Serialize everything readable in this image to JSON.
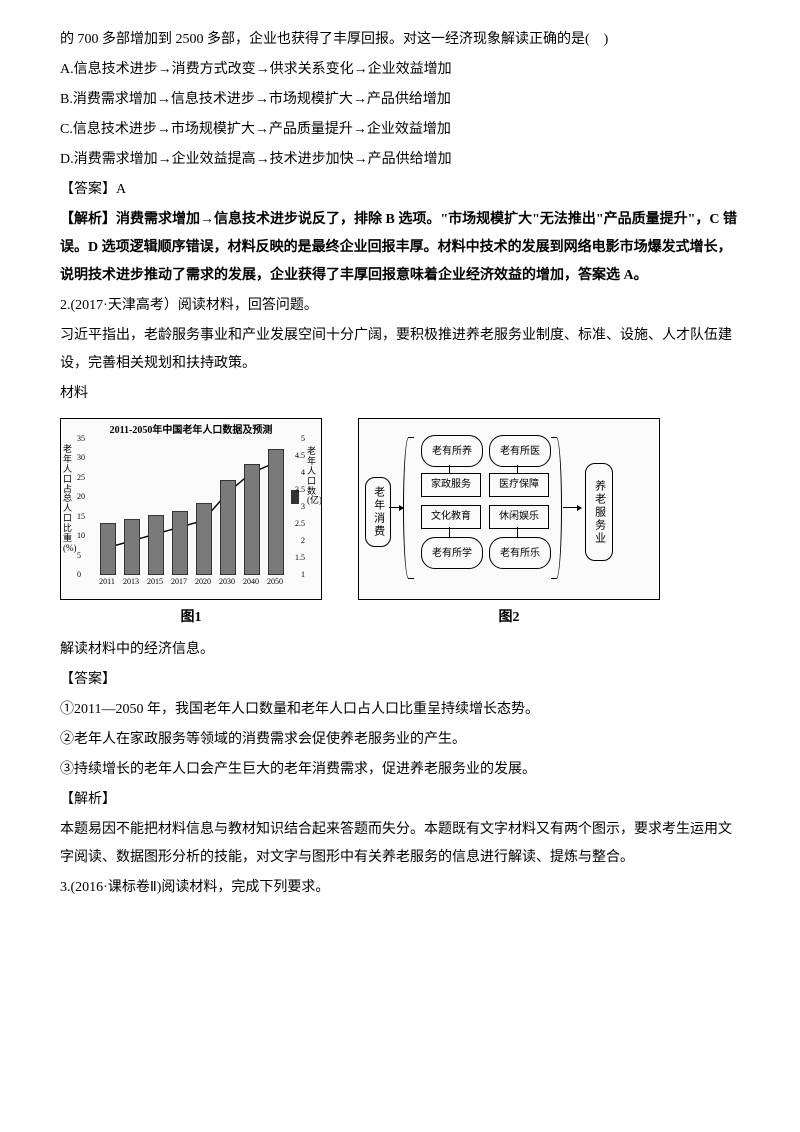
{
  "q1": {
    "stem_cont": "的 700 多部增加到 2500 多部，企业也获得了丰厚回报。对这一经济现象解读正确的是(　)",
    "opts": {
      "A": "A.信息技术进步→消费方式改变→供求关系变化→企业效益增加",
      "B": "B.消费需求增加→信息技术进步→市场规模扩大→产品供给增加",
      "C": "C.信息技术进步→市场规模扩大→产品质量提升→企业效益增加",
      "D": "D.消费需求增加→企业效益提高→技术进步加快→产品供给增加"
    },
    "answer_label": "【答案】A",
    "analysis_label": "【解析】",
    "analysis": "消费需求增加→信息技术进步说反了，排除 B 选项。\"市场规模扩大\"无法推出\"产品质量提升\"，C 错误。D 选项逻辑顺序错误，材料反映的是最终企业回报丰厚。材料中技术的发展到网络电影市场爆发式增长，说明技术进步推动了需求的发展，企业获得了丰厚回报意味着企业经济效益的增加，答案选 A。"
  },
  "q2": {
    "source": "2.(2017·天津高考）阅读材料，回答问题。",
    "intro": "习近平指出，老龄服务事业和产业发展空间十分广阔，要积极推进养老服务业制度、标准、设施、人才队伍建设，完善相关规划和扶持政策。",
    "material_label": "材料",
    "fig1": {
      "title": "2011-2050年中国老年人口数据及预测",
      "yleft_label": "老年人口占总人口比重(%)",
      "yright_label": "老年人口数(亿)",
      "yleft_ticks": [
        0,
        5,
        10,
        15,
        20,
        25,
        30,
        35
      ],
      "yright_ticks": [
        1,
        1.5,
        2,
        2.5,
        3,
        3.5,
        4,
        4.5,
        5
      ],
      "x_labels": [
        "2011",
        "2013",
        "2015",
        "2017",
        "2020",
        "2030",
        "2040",
        "2050"
      ],
      "bar_values_pct": [
        13,
        14,
        15,
        16,
        18,
        24,
        28,
        32
      ],
      "line_values": [
        1.8,
        2.0,
        2.2,
        2.4,
        2.6,
        3.4,
        4.0,
        4.3
      ],
      "yleft_max": 35,
      "yright_min": 1,
      "yright_max": 5,
      "caption": "图1",
      "legend_bar": "■"
    },
    "fig2": {
      "left_box": "老年消费",
      "grid": {
        "r1c1": "老有所养",
        "r1c2": "老有所医",
        "r2c1": "家政服务",
        "r2c2": "医疗保障",
        "r3c1": "文化教育",
        "r3c2": "休闲娱乐",
        "r4c1": "老有所学",
        "r4c2": "老有所乐"
      },
      "right_box": "养老服务业",
      "caption": "图2"
    },
    "task": "解读材料中的经济信息。",
    "answer_label": "【答案】",
    "answers": {
      "a1": "①2011—2050 年，我国老年人口数量和老年人口占人口比重呈持续增长态势。",
      "a2": "②老年人在家政服务等领域的消费需求会促使养老服务业的产生。",
      "a3": "③持续增长的老年人口会产生巨大的老年消费需求，促进养老服务业的发展。"
    },
    "analysis_label": "【解析】",
    "analysis": "本题易因不能把材料信息与教材知识结合起来答题而失分。本题既有文字材料又有两个图示，要求考生运用文字阅读、数据图形分析的技能，对文字与图形中有关养老服务的信息进行解读、提炼与整合。"
  },
  "q3": {
    "source": "3.(2016·课标卷Ⅱ)阅读材料，完成下列要求。"
  }
}
